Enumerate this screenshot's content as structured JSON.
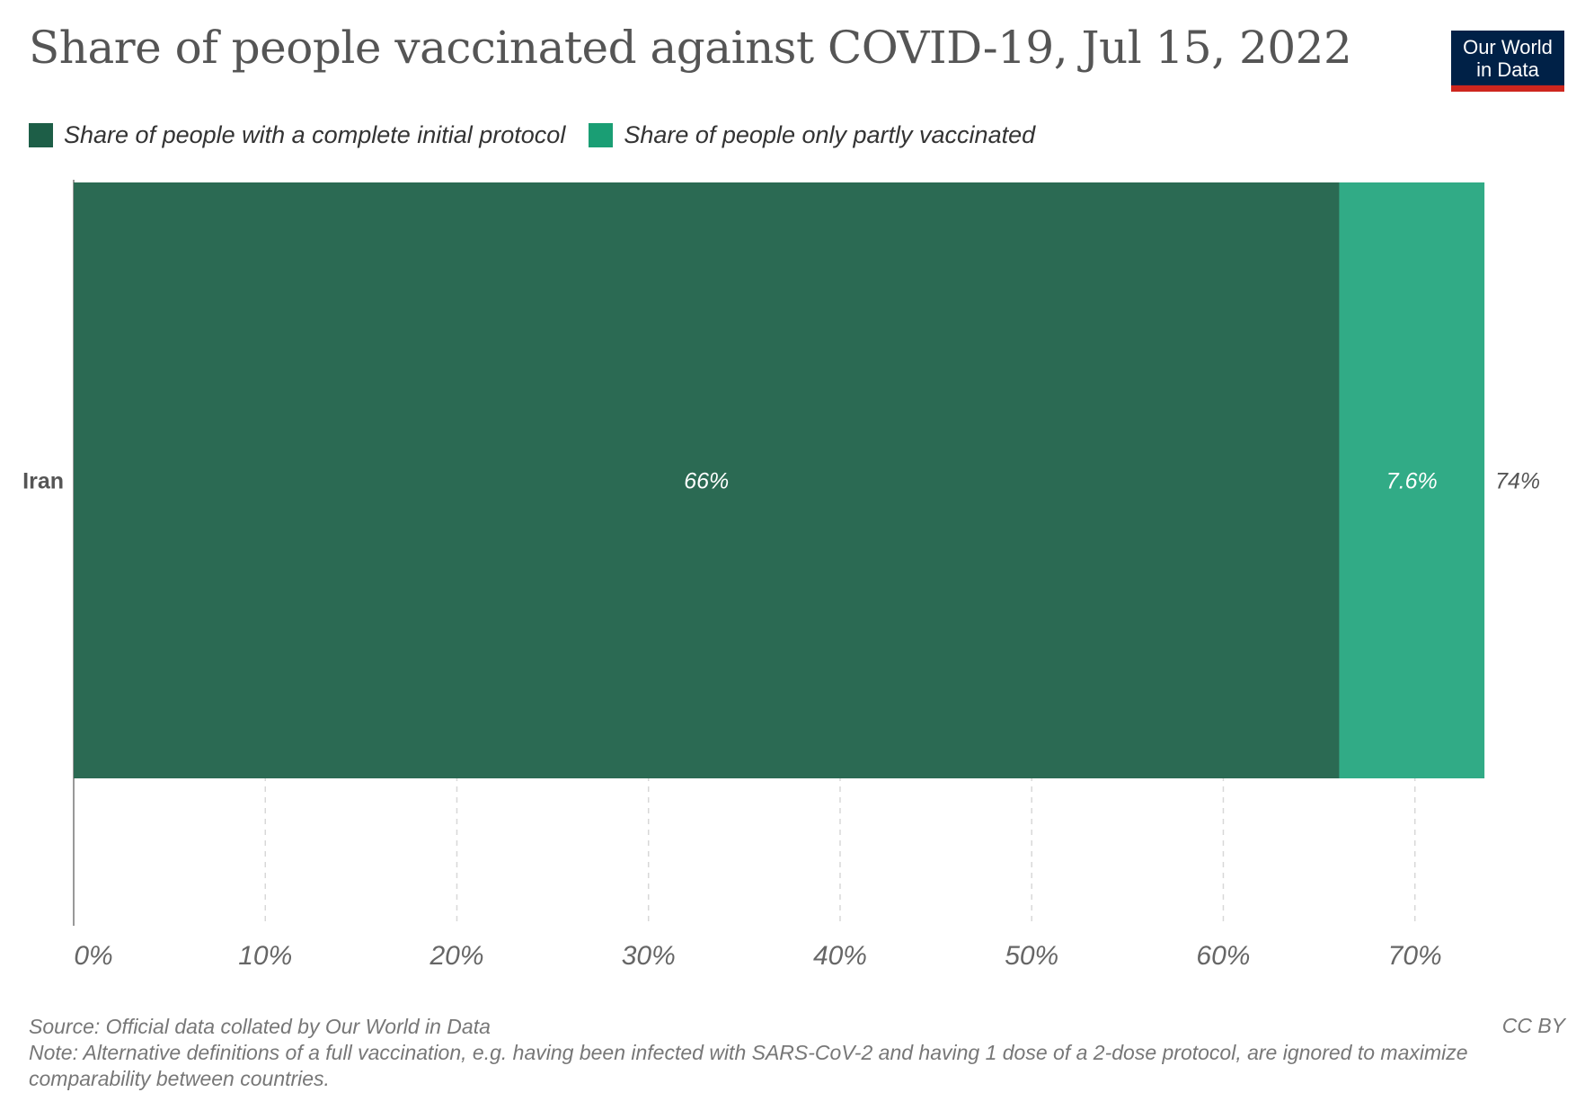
{
  "title": "Share of people vaccinated against COVID-19, Jul 15, 2022",
  "logo": {
    "line1": "Our World",
    "line2": "in Data"
  },
  "colors": {
    "complete": "#2b6a53",
    "partial": "#31ab86",
    "logo_bg": "#002147",
    "logo_accent": "#ce261e"
  },
  "legend": [
    {
      "label": "Share of people with a complete initial protocol",
      "color": "#1d5e47"
    },
    {
      "label": "Share of people only partly vaccinated",
      "color": "#1a9e74"
    }
  ],
  "chart_data": {
    "type": "bar",
    "orientation": "horizontal",
    "stacked": true,
    "categories": [
      "Iran"
    ],
    "series": [
      {
        "name": "Share of people with a complete initial protocol",
        "values": [
          66.05
        ],
        "labels": [
          "66%"
        ]
      },
      {
        "name": "Share of people only partly vaccinated",
        "values": [
          7.58
        ],
        "labels": [
          "7.6%"
        ]
      }
    ],
    "totals": [
      "74%"
    ],
    "xlim": [
      0,
      74
    ],
    "xticks": [
      0,
      10,
      20,
      30,
      40,
      50,
      60,
      70
    ],
    "xtick_labels": [
      "0%",
      "10%",
      "20%",
      "30%",
      "40%",
      "50%",
      "60%",
      "70%"
    ],
    "grid": "vertical dashed"
  },
  "footer": {
    "source": "Source: Official data collated by Our World in Data",
    "license": "CC BY",
    "note": "Note: Alternative definitions of a full vaccination, e.g. having been infected with SARS-CoV-2 and having 1 dose of a 2-dose protocol, are ignored to maximize comparability between countries."
  }
}
